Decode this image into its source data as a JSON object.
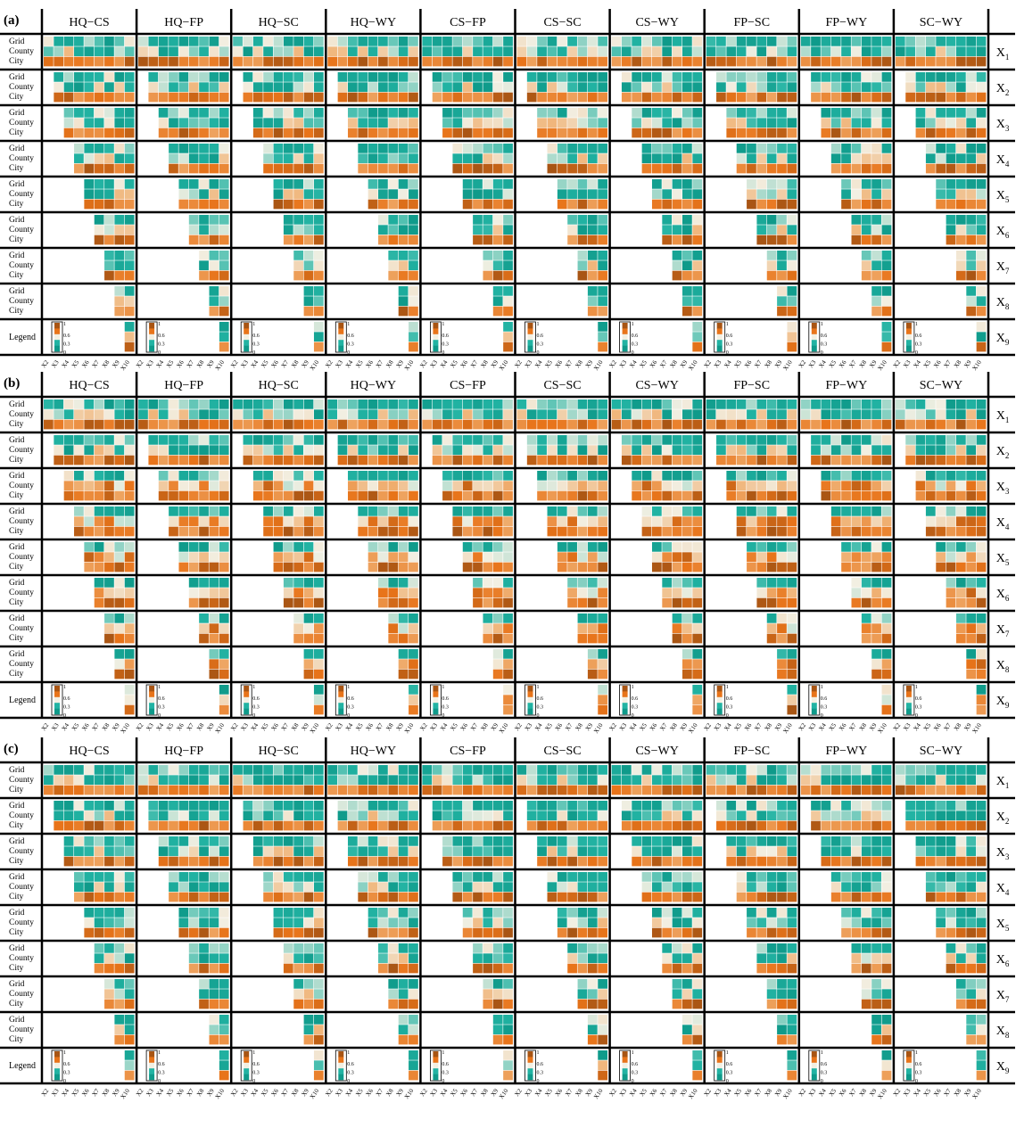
{
  "figure": {
    "panel_labels": [
      "(a)",
      "(b)",
      "(c)"
    ],
    "pairs": [
      "HQ−CS",
      "HQ−FP",
      "HQ−SC",
      "HQ−WY",
      "CS−FP",
      "CS−SC",
      "CS−WY",
      "FP−SC",
      "FP−WY",
      "SC−WY"
    ],
    "row_labels": [
      "Grid",
      "County",
      "City"
    ],
    "legend_label": "Legend",
    "factors": [
      "X1",
      "X2",
      "X3",
      "X4",
      "X5",
      "X6",
      "X7",
      "X8",
      "X9"
    ],
    "x_ticks": [
      "X2",
      "X3",
      "X4",
      "X5",
      "X6",
      "X7",
      "X8",
      "X9",
      "X10"
    ],
    "colorbar_ticks": [
      "1",
      "0.6",
      "0.3",
      "0"
    ],
    "colors": {
      "low": "#0f9a8a",
      "mid_low": "#22b3a3",
      "mid": "#f2efe2",
      "mid_high": "#f0b57a",
      "high": "#e8741a",
      "max": "#a85514",
      "frame": "#000000"
    }
  },
  "chart_data": {
    "type": "heatmap",
    "description_note": "",
    "panels": [
      {
        "label": "(a)",
        "ylim": [
          0,
          1
        ],
        "colorbar": [
          0,
          0.3,
          0.6,
          1
        ]
      },
      {
        "label": "(b)",
        "ylim": [
          0,
          1
        ],
        "colorbar": [
          0,
          0.3,
          0.6,
          1
        ]
      },
      {
        "label": "(c)",
        "ylim": [
          0,
          1
        ],
        "colorbar": [
          0,
          0.3,
          0.6,
          1
        ]
      }
    ],
    "columns": [
      "HQ−CS",
      "HQ−FP",
      "HQ−SC",
      "HQ−WY",
      "CS−FP",
      "CS−SC",
      "CS−WY",
      "FP−SC",
      "FP−WY",
      "SC−WY"
    ],
    "rows": [
      "X1",
      "X2",
      "X3",
      "X4",
      "X5",
      "X6",
      "X7",
      "X8",
      "X9"
    ],
    "scales": [
      "Grid",
      "County",
      "City"
    ],
    "x": [
      "X2",
      "X3",
      "X4",
      "X5",
      "X6",
      "X7",
      "X8",
      "X9",
      "X10"
    ],
    "value_range": [
      0,
      1
    ]
  }
}
